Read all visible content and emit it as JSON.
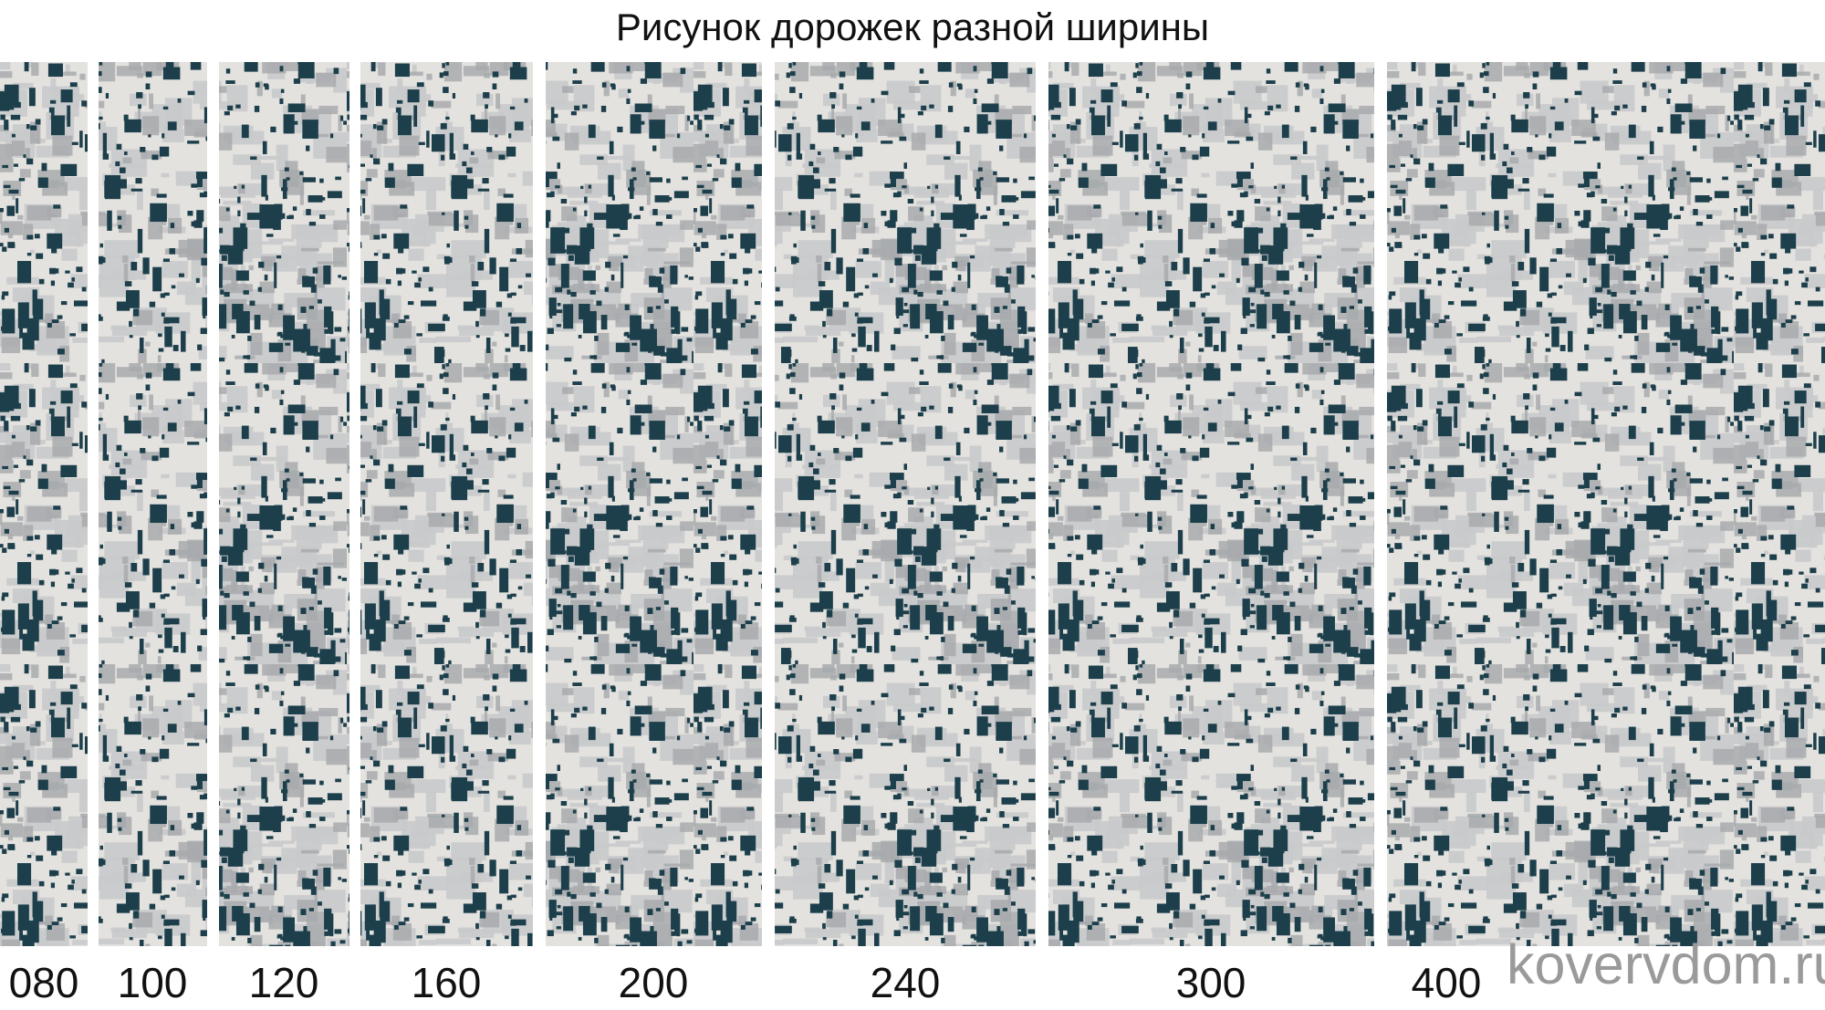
{
  "title": "Рисунок дорожек разной ширины",
  "widths": [
    {
      "label": "080"
    },
    {
      "label": "100"
    },
    {
      "label": "120"
    },
    {
      "label": "160"
    },
    {
      "label": "200"
    },
    {
      "label": "240"
    },
    {
      "label": "300"
    },
    {
      "label": "400"
    }
  ],
  "watermark": "kovervdom.ru",
  "colors": {
    "base": "#e4e2df",
    "dark": "#1c3f4b",
    "mid": "#a8abad",
    "light_grey": "#c9cacb"
  }
}
